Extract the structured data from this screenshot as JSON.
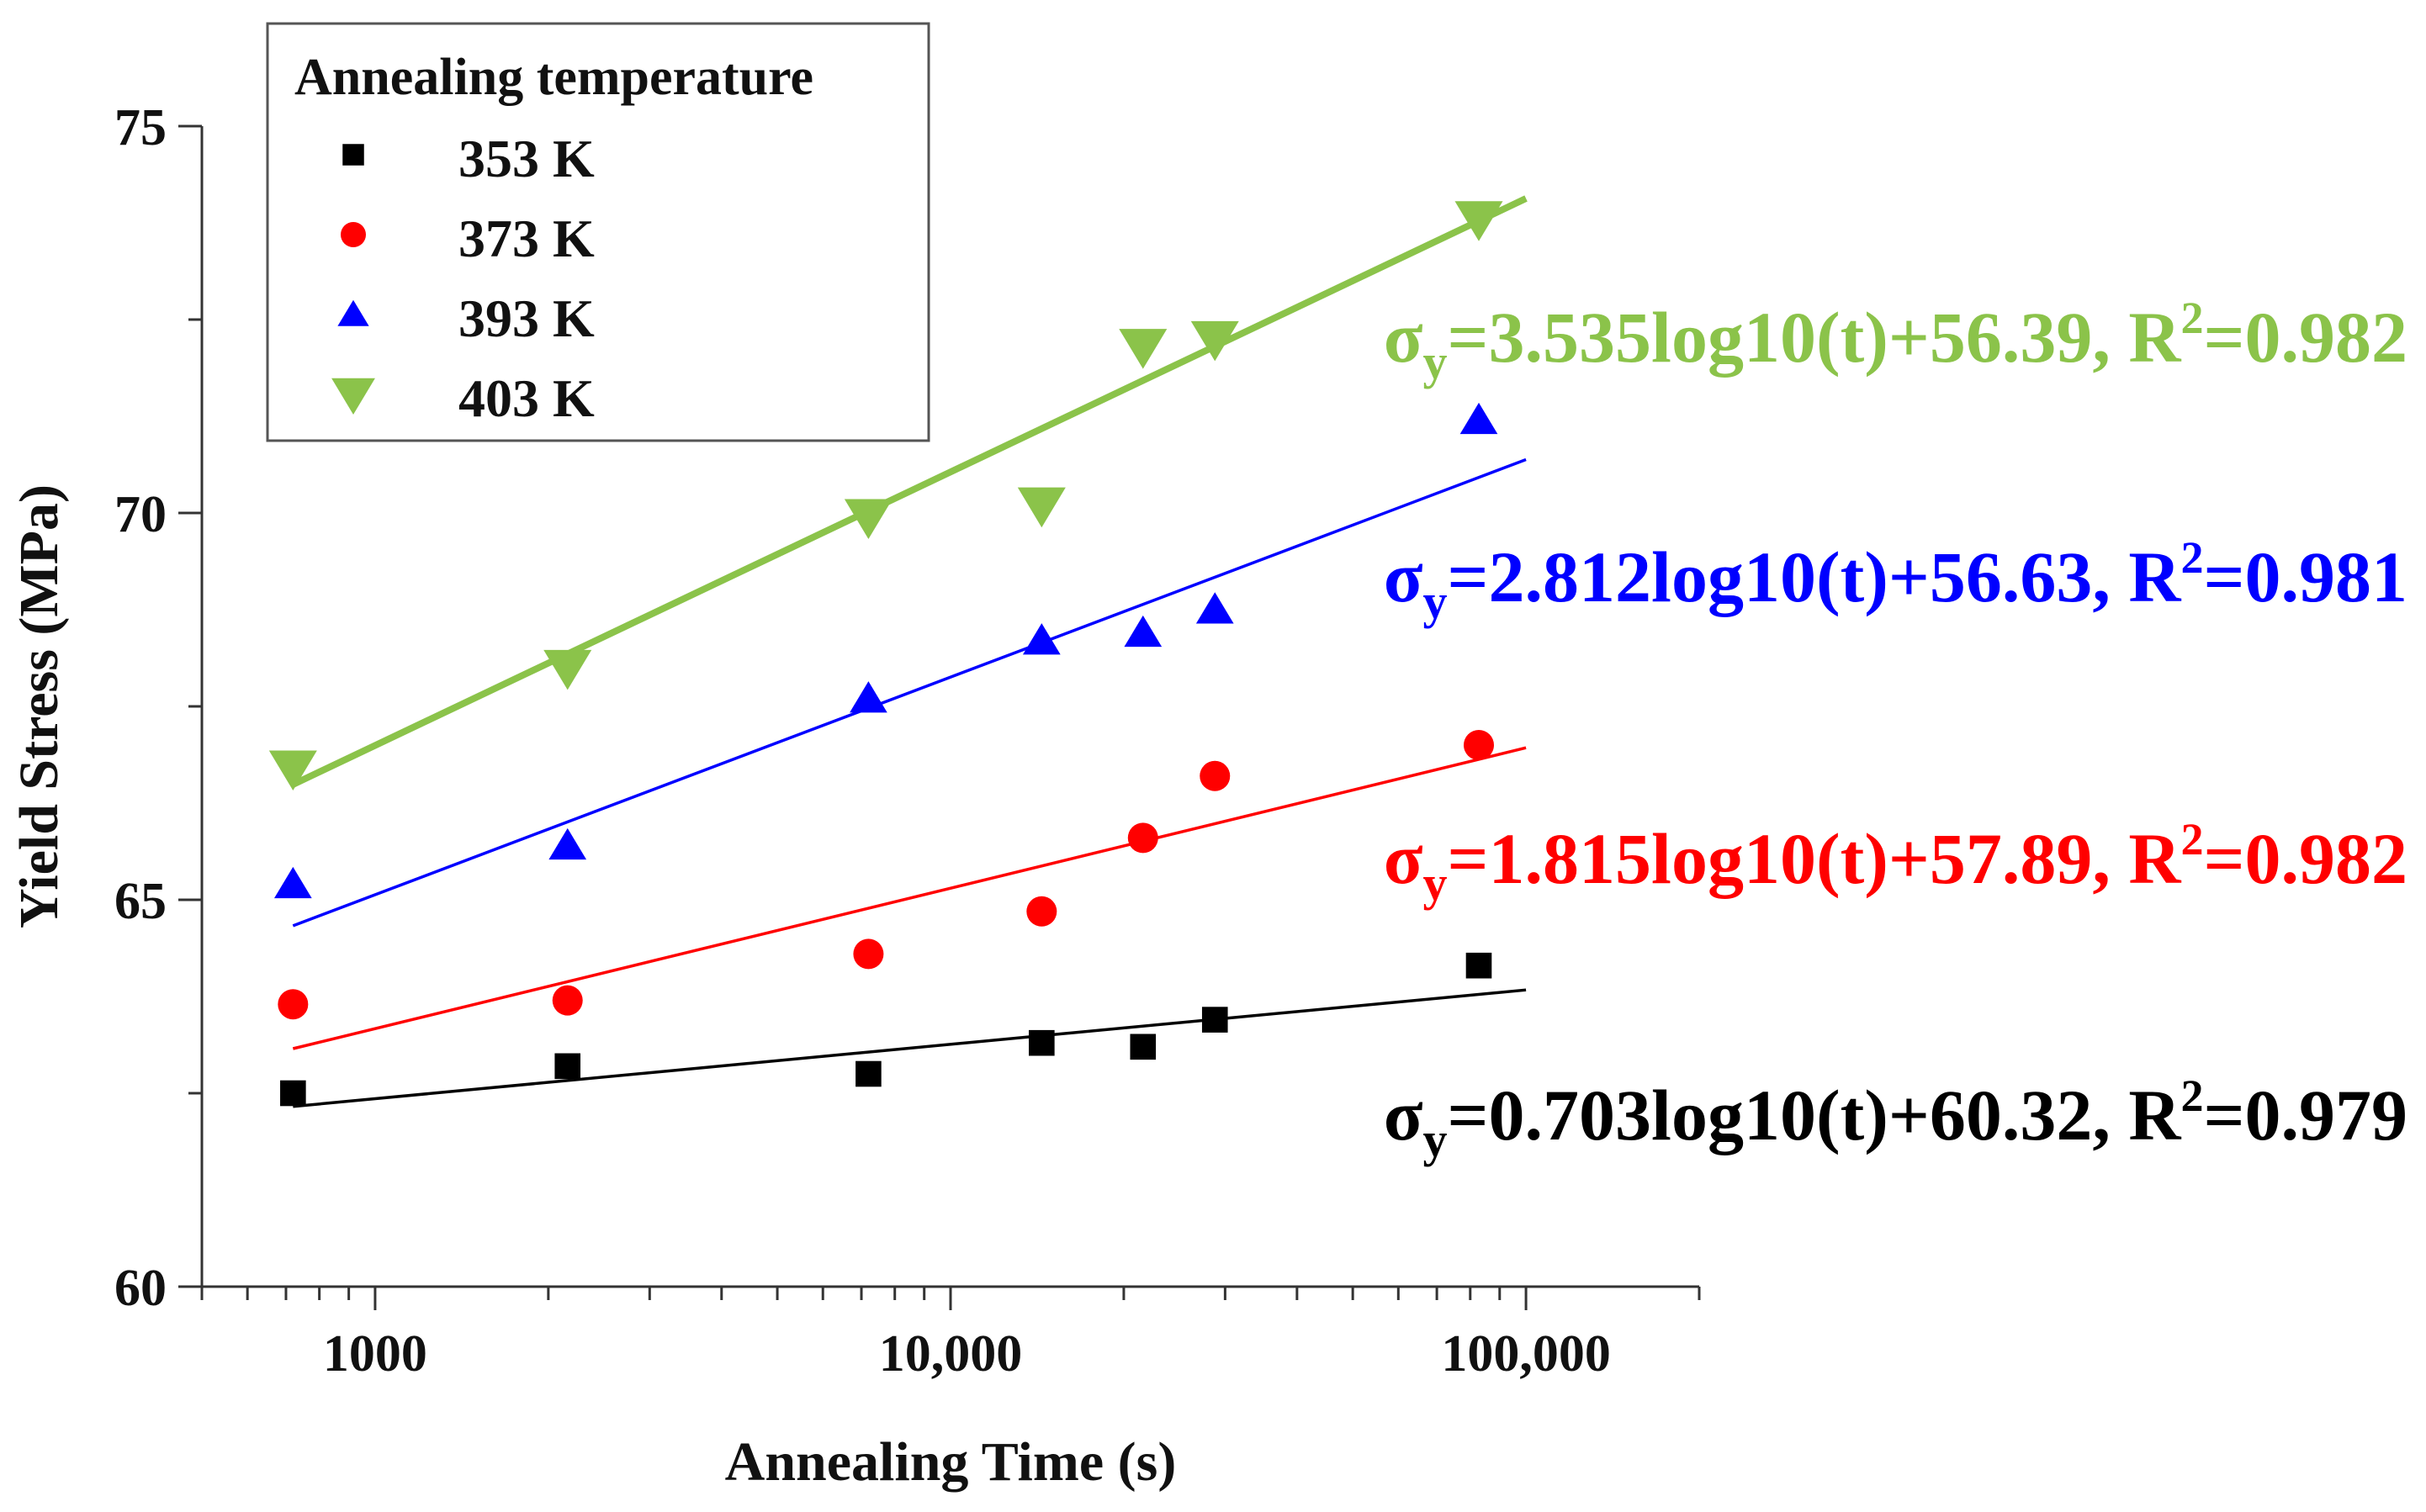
{
  "chart_data": {
    "type": "scatter",
    "xscale": "log",
    "xlabel": "Annealing Time (s)",
    "ylabel": "Yield Stress (MPa)",
    "xlim": [
      500,
      200000
    ],
    "ylim": [
      60,
      75
    ],
    "xticks": [
      {
        "value": 1000,
        "label": "1000"
      },
      {
        "value": 10000,
        "label": "10,000"
      },
      {
        "value": 100000,
        "label": "100,000"
      }
    ],
    "yticks": [
      {
        "value": 60,
        "label": "60"
      },
      {
        "value": 65,
        "label": "65"
      },
      {
        "value": 70,
        "label": "70"
      },
      {
        "value": 75,
        "label": "75"
      }
    ],
    "legend": {
      "title": "Annealing temperature",
      "placement": "top-left"
    },
    "series": [
      {
        "name": "353 K",
        "color": "#000000",
        "marker": "square",
        "x": [
          720,
          2160,
          7200,
          14400,
          21600,
          28800,
          82800
        ],
        "y": [
          62.5,
          62.85,
          62.75,
          63.15,
          63.1,
          63.45,
          64.15
        ],
        "fit": {
          "slope": 0.703,
          "intercept": 60.32,
          "x_range": [
            720,
            100000
          ]
        },
        "equation": {
          "sigma": "σ",
          "sub": "y",
          "body": "=0.703log10(t)+60.32, R",
          "sup": "2",
          "tail": "=0.979"
        }
      },
      {
        "name": "373 K",
        "color": "#ff0000",
        "marker": "circle",
        "x": [
          720,
          2160,
          7200,
          14400,
          21600,
          28800,
          82800
        ],
        "y": [
          63.65,
          63.7,
          64.3,
          64.85,
          65.8,
          66.6,
          67.0
        ],
        "fit": {
          "slope": 1.815,
          "intercept": 57.89,
          "x_range": [
            720,
            100000
          ]
        },
        "equation": {
          "sigma": "σ",
          "sub": "y",
          "body": "=1.815log10(t)+57.89, R",
          "sup": "2",
          "tail": "=0.982"
        }
      },
      {
        "name": "393 K",
        "color": "#0000ff",
        "marker": "triangle-up",
        "x": [
          720,
          2160,
          7200,
          14400,
          21600,
          28800,
          82800
        ],
        "y": [
          65.2,
          65.7,
          67.6,
          68.35,
          68.45,
          68.75,
          71.2
        ],
        "fit": {
          "slope": 2.812,
          "intercept": 56.63,
          "x_range": [
            720,
            100000
          ]
        },
        "equation": {
          "sigma": "σ",
          "sub": "y",
          "body": "=2.812log10(t)+56.63, R",
          "sup": "2",
          "tail": "=0.981"
        }
      },
      {
        "name": "403 K",
        "color": "#8bc34a",
        "marker": "triangle-down",
        "x": [
          720,
          2160,
          7200,
          14400,
          21600,
          28800,
          82800
        ],
        "y": [
          66.7,
          68.0,
          69.95,
          70.1,
          72.15,
          72.25,
          73.8
        ],
        "fit": {
          "slope": 3.535,
          "intercept": 56.39,
          "x_range": [
            720,
            100000
          ]
        },
        "equation": {
          "sigma": "σ",
          "sub": "y",
          "body": "=3.535log10(t)+56.39, R",
          "sup": "2",
          "tail": "=0.982"
        }
      }
    ]
  }
}
